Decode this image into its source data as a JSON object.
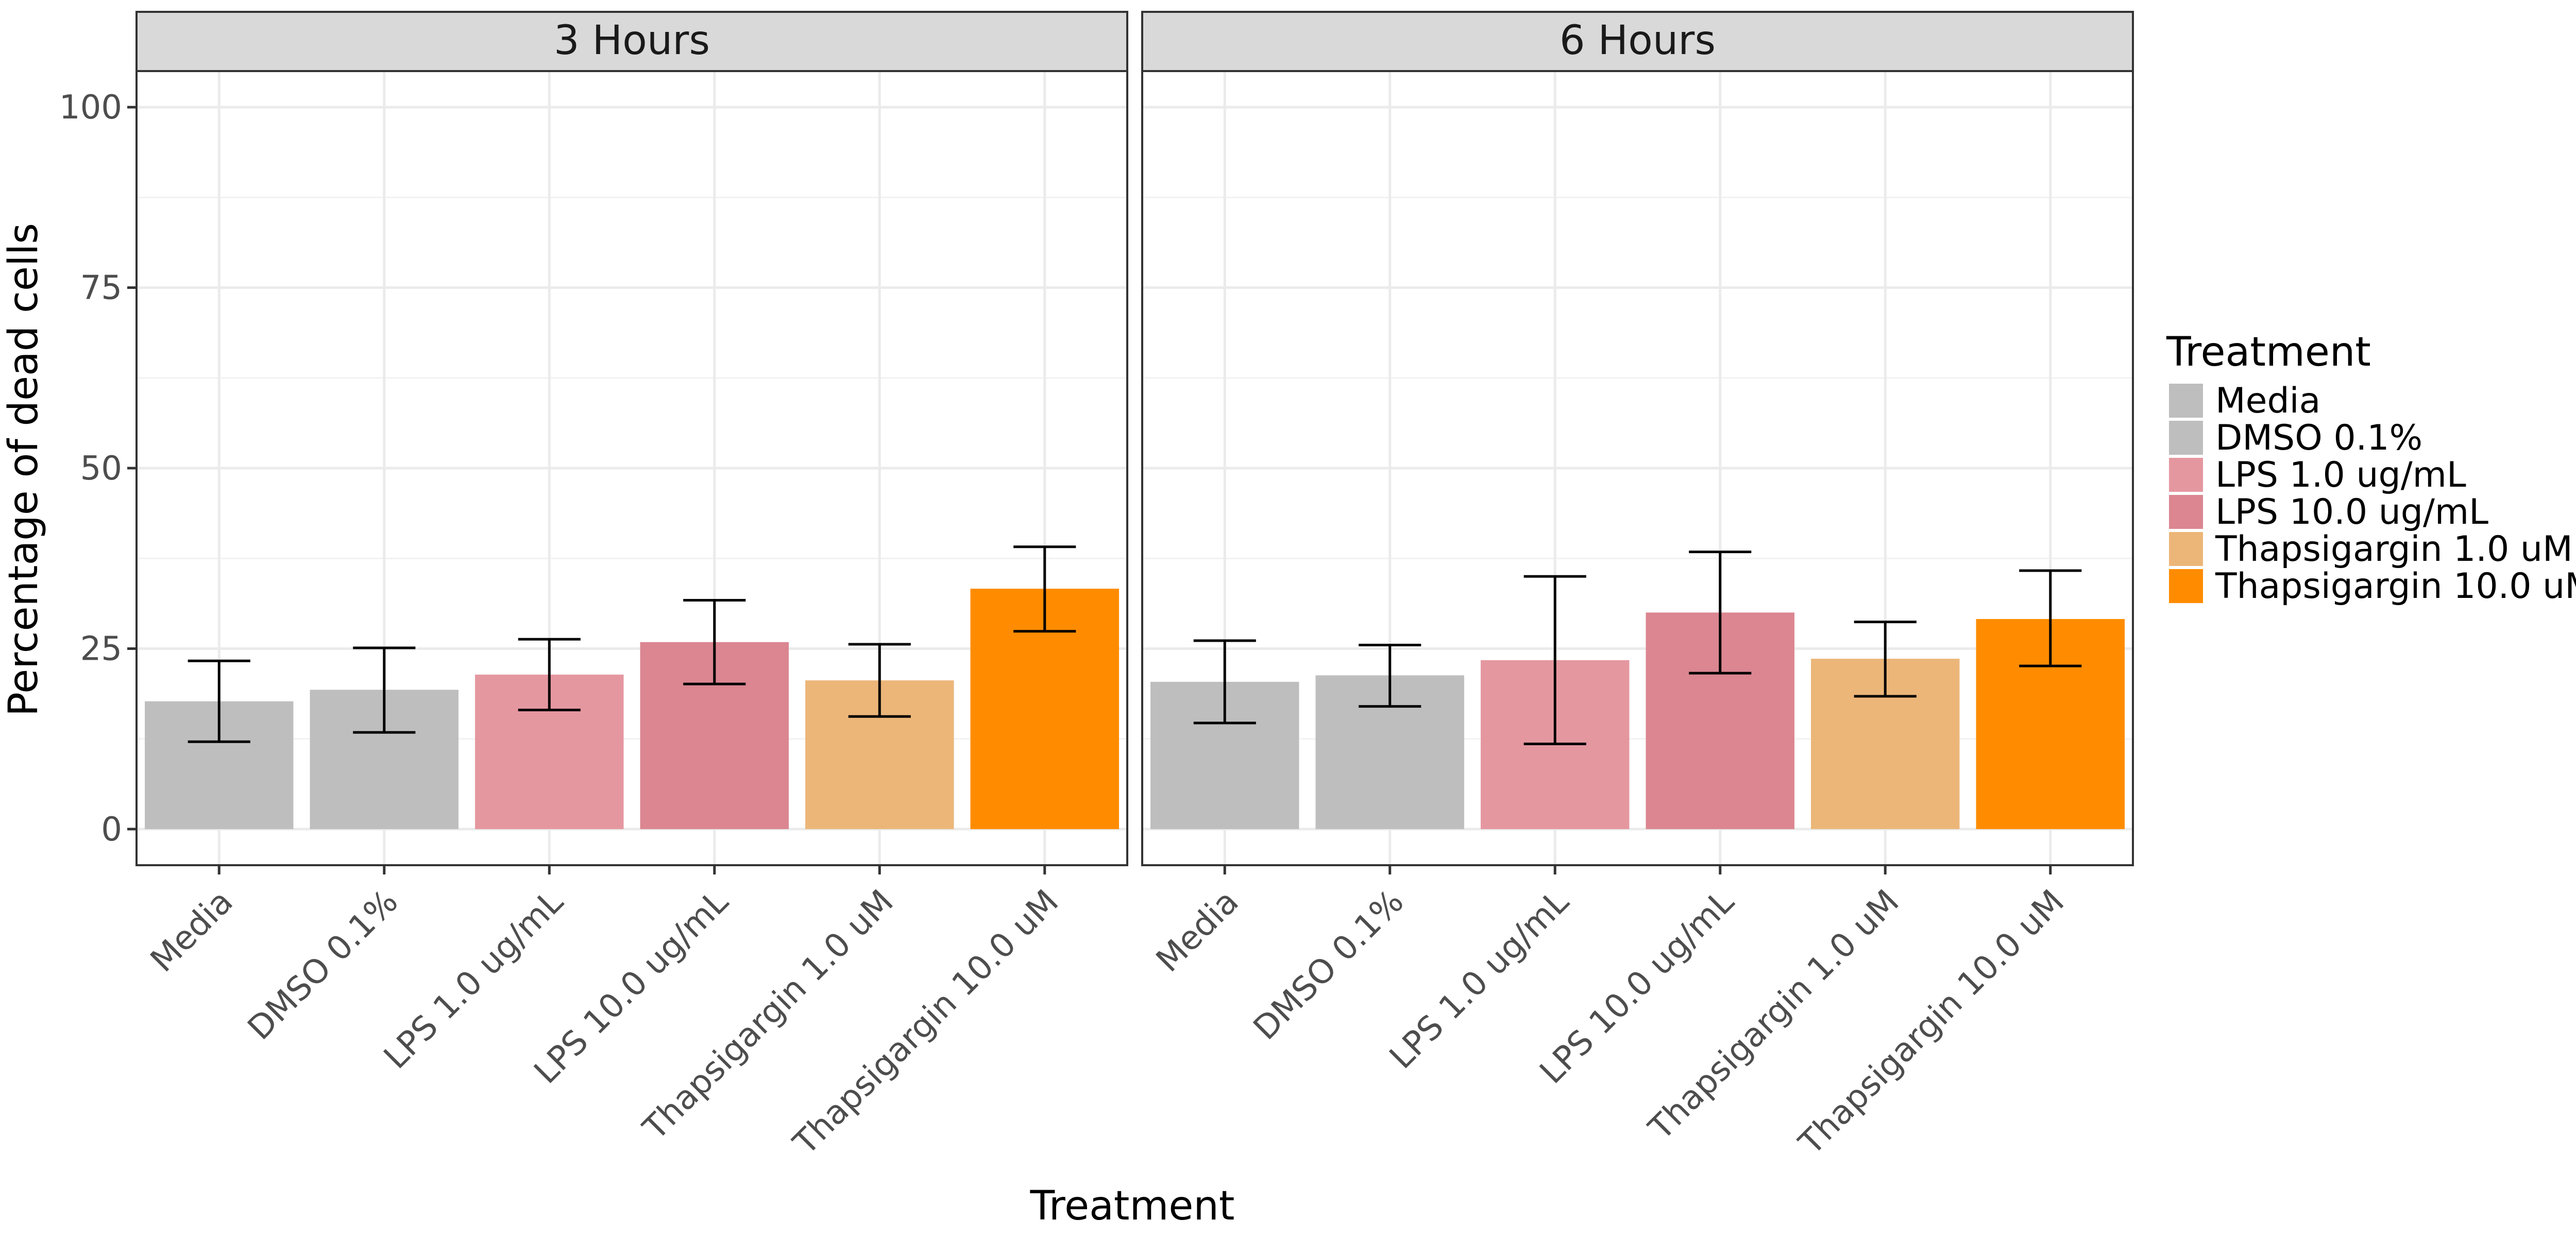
{
  "chart_data": {
    "type": "bar",
    "xlabel": "Treatment",
    "ylabel": "Percentage of dead cells",
    "ylim": [
      -5,
      105
    ],
    "yticks": [
      0,
      25,
      50,
      75,
      100
    ],
    "grid": true,
    "legend_title": "Treatment",
    "legend_position": "right",
    "categories": [
      "Media",
      "DMSO 0.1%",
      "LPS 1.0 ug/mL",
      "LPS 10.0 ug/mL",
      "Thapsigargin 1.0 uM",
      "Thapsigargin 10.0 uM"
    ],
    "colors": [
      "#bebebe",
      "#bebebe",
      "#e597a0",
      "#db8691",
      "#ecb679",
      "#ff8c00"
    ],
    "panels": [
      {
        "title": "3 Hours",
        "values": [
          17.7,
          19.3,
          21.4,
          25.9,
          20.6,
          33.3
        ],
        "error_low": [
          12.1,
          13.4,
          16.5,
          20.1,
          15.6,
          27.4
        ],
        "error_high": [
          23.3,
          25.1,
          26.3,
          31.7,
          25.6,
          39.1
        ]
      },
      {
        "title": "6 Hours",
        "values": [
          20.4,
          21.3,
          23.4,
          30.0,
          23.6,
          29.1
        ],
        "error_low": [
          14.7,
          17.0,
          11.8,
          21.6,
          18.4,
          22.6
        ],
        "error_high": [
          26.1,
          25.5,
          35.0,
          38.4,
          28.7,
          35.8
        ]
      }
    ]
  }
}
